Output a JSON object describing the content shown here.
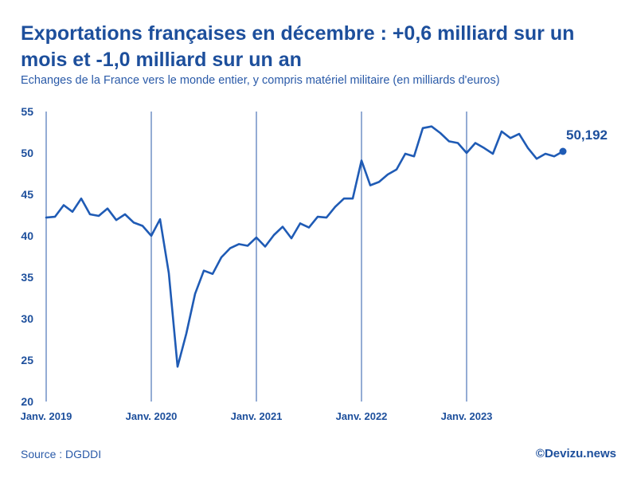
{
  "chart_data": {
    "type": "line",
    "title": "Exportations françaises en décembre : +0,6 milliard sur un mois et -1,0 milliard sur un an",
    "subtitle": "Echanges de la France vers le monde entier, y compris matériel militaire (en milliards d'euros)",
    "xlabel": "",
    "ylabel": "",
    "ylim": [
      20,
      55
    ],
    "yticks": [
      "20",
      "25",
      "30",
      "35",
      "40",
      "45",
      "50",
      "55"
    ],
    "ytick_values": [
      20,
      25,
      30,
      35,
      40,
      45,
      50,
      55
    ],
    "x_ticks": [
      {
        "label": "Janv. 2019",
        "index": 0
      },
      {
        "label": "Janv. 2020",
        "index": 12
      },
      {
        "label": "Janv. 2021",
        "index": 24
      },
      {
        "label": "Janv. 2022",
        "index": 36
      },
      {
        "label": "Janv. 2023",
        "index": 48
      }
    ],
    "series": [
      {
        "name": "Exportations",
        "color": "#1f5bb5",
        "values": [
          42.2,
          42.3,
          43.7,
          42.9,
          44.5,
          42.6,
          42.4,
          43.3,
          41.9,
          42.6,
          41.6,
          41.2,
          40.0,
          42.0,
          35.5,
          24.2,
          28.2,
          33.0,
          35.8,
          35.4,
          37.4,
          38.5,
          39.0,
          38.8,
          39.8,
          38.7,
          40.1,
          41.1,
          39.7,
          41.5,
          41.0,
          42.3,
          42.2,
          43.5,
          44.5,
          44.5,
          49.1,
          46.1,
          46.5,
          47.4,
          48.0,
          49.9,
          49.6,
          53.0,
          53.2,
          52.4,
          51.4,
          51.2,
          50.0,
          51.2,
          50.6,
          49.9,
          52.6,
          51.8,
          52.3,
          50.6,
          49.3,
          49.9,
          49.6,
          50.192
        ]
      }
    ],
    "last_value_label": "50,192"
  },
  "footer": {
    "source": "Source : DGDDI",
    "credit": "©Devizu.news"
  }
}
